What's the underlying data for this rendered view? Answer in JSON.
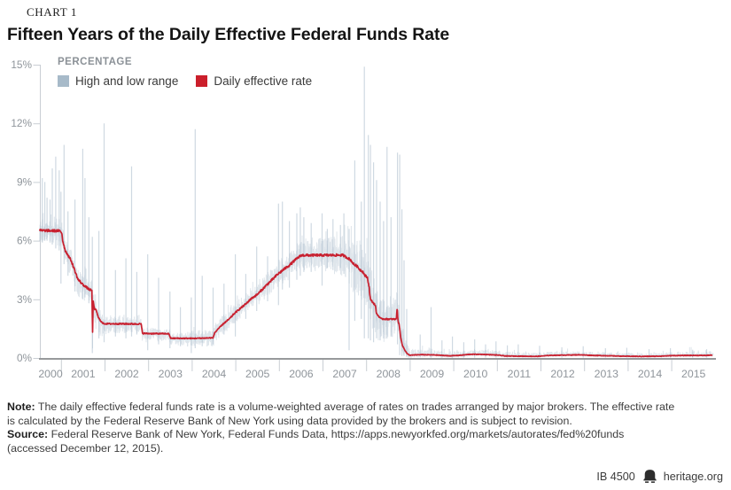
{
  "page": {
    "kicker": "CHART 1",
    "title": "Fifteen Years of the Daily Effective Federal Funds Rate"
  },
  "chart_data": {
    "type": "line",
    "title": "Fifteen Years of the Daily Effective Federal Funds Rate",
    "axis_heading": "PERCENTAGE",
    "legend_items": [
      {
        "label": "High and low range",
        "color": "#a7bac9",
        "kind": "range"
      },
      {
        "label": "Daily effective rate",
        "color": "#cb1f2b",
        "kind": "line"
      }
    ],
    "x_domain": [
      2000.5,
      2015.95
    ],
    "x_tick_labels": [
      "2000",
      "2001",
      "2002",
      "2003",
      "2004",
      "2005",
      "2006",
      "2007",
      "2008",
      "2009",
      "2010",
      "2011",
      "2012",
      "2013",
      "2014",
      "2015"
    ],
    "y_ticks": [
      0,
      3,
      6,
      9,
      12,
      15
    ],
    "y_tick_labels": [
      "0%",
      "3%",
      "6%",
      "9%",
      "12%",
      "15%"
    ],
    "ylim": [
      0,
      15
    ],
    "grid": false,
    "legend_position": "top-left",
    "series": [
      {
        "name": "Daily effective rate",
        "type": "line",
        "color": "#c8202f",
        "points": [
          [
            2000.5,
            6.52
          ],
          [
            2000.96,
            6.5
          ],
          [
            2001.01,
            6.4
          ],
          [
            2001.03,
            5.98
          ],
          [
            2001.09,
            5.49
          ],
          [
            2001.22,
            5.0
          ],
          [
            2001.3,
            4.51
          ],
          [
            2001.38,
            4.02
          ],
          [
            2001.49,
            3.76
          ],
          [
            2001.64,
            3.5
          ],
          [
            2001.7,
            3.45
          ],
          [
            2001.715,
            1.22
          ],
          [
            2001.73,
            2.95
          ],
          [
            2001.76,
            2.48
          ],
          [
            2001.8,
            2.44
          ],
          [
            2001.85,
            2.04
          ],
          [
            2001.87,
            2.0
          ],
          [
            2001.94,
            1.78
          ],
          [
            2002.0,
            1.75
          ],
          [
            2002.83,
            1.74
          ],
          [
            2002.86,
            1.26
          ],
          [
            2003.0,
            1.25
          ],
          [
            2003.47,
            1.24
          ],
          [
            2003.5,
            1.01
          ],
          [
            2004.0,
            1.0
          ],
          [
            2004.48,
            1.03
          ],
          [
            2004.51,
            1.26
          ],
          [
            2004.6,
            1.51
          ],
          [
            2004.62,
            1.53
          ],
          [
            2004.72,
            1.76
          ],
          [
            2004.86,
            2.01
          ],
          [
            2004.96,
            2.26
          ],
          [
            2005.09,
            2.51
          ],
          [
            2005.23,
            2.76
          ],
          [
            2005.34,
            3.01
          ],
          [
            2005.5,
            3.26
          ],
          [
            2005.61,
            3.51
          ],
          [
            2005.72,
            3.76
          ],
          [
            2005.84,
            4.01
          ],
          [
            2005.95,
            4.26
          ],
          [
            2006.09,
            4.51
          ],
          [
            2006.24,
            4.76
          ],
          [
            2006.36,
            5.01
          ],
          [
            2006.5,
            5.25
          ],
          [
            2007.45,
            5.26
          ],
          [
            2007.58,
            5.1
          ],
          [
            2007.63,
            5.02
          ],
          [
            2007.72,
            4.76
          ],
          [
            2007.77,
            4.72
          ],
          [
            2007.84,
            4.53
          ],
          [
            2007.92,
            4.4
          ],
          [
            2007.95,
            4.25
          ],
          [
            2008.02,
            4.1
          ],
          [
            2008.06,
            3.6
          ],
          [
            2008.09,
            2.98
          ],
          [
            2008.2,
            2.7
          ],
          [
            2008.23,
            2.26
          ],
          [
            2008.33,
            2.0
          ],
          [
            2008.68,
            1.98
          ],
          [
            2008.705,
            2.6
          ],
          [
            2008.72,
            1.9
          ],
          [
            2008.75,
            1.68
          ],
          [
            2008.78,
            1.1
          ],
          [
            2008.82,
            0.65
          ],
          [
            2008.88,
            0.4
          ],
          [
            2008.93,
            0.22
          ],
          [
            2008.99,
            0.14
          ],
          [
            2009.25,
            0.17
          ],
          [
            2009.6,
            0.15
          ],
          [
            2009.9,
            0.11
          ],
          [
            2010.1,
            0.13
          ],
          [
            2010.4,
            0.19
          ],
          [
            2010.7,
            0.18
          ],
          [
            2011.0,
            0.15
          ],
          [
            2011.2,
            0.1
          ],
          [
            2011.6,
            0.09
          ],
          [
            2011.9,
            0.08
          ],
          [
            2012.2,
            0.13
          ],
          [
            2012.6,
            0.15
          ],
          [
            2012.9,
            0.16
          ],
          [
            2013.2,
            0.13
          ],
          [
            2013.6,
            0.11
          ],
          [
            2013.9,
            0.09
          ],
          [
            2014.3,
            0.08
          ],
          [
            2014.7,
            0.09
          ],
          [
            2015.0,
            0.12
          ],
          [
            2015.4,
            0.13
          ],
          [
            2015.8,
            0.13
          ],
          [
            2015.94,
            0.15
          ]
        ]
      },
      {
        "name": "High and low range",
        "type": "range",
        "color": "#a7bac9",
        "envelope": [
          [
            2000.5,
            0.45,
            0.55
          ],
          [
            2001.0,
            0.55,
            0.8
          ],
          [
            2001.6,
            0.55,
            0.9
          ],
          [
            2001.8,
            0.6,
            1.0
          ],
          [
            2002.0,
            0.4,
            0.55
          ],
          [
            2002.5,
            0.35,
            0.5
          ],
          [
            2003.0,
            0.3,
            0.45
          ],
          [
            2003.6,
            0.28,
            0.4
          ],
          [
            2004.0,
            0.4,
            0.45
          ],
          [
            2004.6,
            0.45,
            0.5
          ],
          [
            2005.0,
            0.5,
            0.55
          ],
          [
            2005.6,
            0.55,
            0.6
          ],
          [
            2006.0,
            0.7,
            0.7
          ],
          [
            2006.5,
            0.85,
            0.8
          ],
          [
            2007.0,
            0.9,
            0.85
          ],
          [
            2007.55,
            1.0,
            1.1
          ],
          [
            2007.7,
            1.2,
            1.6
          ],
          [
            2008.0,
            1.5,
            1.5
          ],
          [
            2008.4,
            1.3,
            1.3
          ],
          [
            2008.75,
            1.0,
            0.6
          ],
          [
            2008.95,
            0.45,
            0.2
          ],
          [
            2009.1,
            0.28,
            0.13
          ],
          [
            2010.0,
            0.25,
            0.12
          ],
          [
            2011.0,
            0.22,
            0.1
          ],
          [
            2012.0,
            0.2,
            0.09
          ],
          [
            2013.0,
            0.18,
            0.08
          ],
          [
            2014.0,
            0.16,
            0.07
          ],
          [
            2015.0,
            0.2,
            0.08
          ],
          [
            2015.95,
            0.28,
            0.1
          ]
        ],
        "spikes": [
          [
            2000.56,
            9.2,
            5.9
          ],
          [
            2000.62,
            9.0,
            6.0
          ],
          [
            2000.67,
            8.2,
            6.0
          ],
          [
            2000.74,
            8.1,
            5.9
          ],
          [
            2000.79,
            9.7,
            5.8
          ],
          [
            2000.87,
            10.3,
            5.6
          ],
          [
            2000.95,
            9.6,
            5.5
          ],
          [
            2000.99,
            8.5,
            3.8
          ],
          [
            2001.06,
            10.9,
            4.8
          ],
          [
            2001.15,
            7.5,
            4.2
          ],
          [
            2001.31,
            8.1,
            3.4
          ],
          [
            2001.49,
            10.7,
            3.0
          ],
          [
            2001.54,
            9.2,
            3.1
          ],
          [
            2001.63,
            7.2,
            2.8
          ],
          [
            2001.71,
            6.2,
            0.25
          ],
          [
            2001.86,
            6.5,
            1.0
          ],
          [
            2001.98,
            12.0,
            0.8
          ],
          [
            2002.24,
            4.5,
            1.1
          ],
          [
            2002.48,
            5.1,
            1.0
          ],
          [
            2002.61,
            9.8,
            1.1
          ],
          [
            2002.73,
            4.4,
            1.2
          ],
          [
            2002.98,
            5.3,
            0.4
          ],
          [
            2003.23,
            4.1,
            0.7
          ],
          [
            2003.49,
            3.4,
            0.5
          ],
          [
            2003.73,
            2.6,
            0.6
          ],
          [
            2003.98,
            3.1,
            0.25
          ],
          [
            2004.07,
            11.7,
            0.5
          ],
          [
            2004.23,
            4.2,
            0.6
          ],
          [
            2004.48,
            3.6,
            0.7
          ],
          [
            2004.73,
            3.8,
            1.2
          ],
          [
            2004.99,
            5.3,
            1.1
          ],
          [
            2005.23,
            4.3,
            2.0
          ],
          [
            2005.48,
            5.7,
            2.4
          ],
          [
            2005.73,
            5.2,
            2.9
          ],
          [
            2005.98,
            7.9,
            2.7
          ],
          [
            2006.07,
            8.0,
            3.5
          ],
          [
            2006.23,
            7.0,
            3.6
          ],
          [
            2006.4,
            7.4,
            4.0
          ],
          [
            2006.48,
            7.7,
            4.2
          ],
          [
            2006.56,
            7.2,
            4.4
          ],
          [
            2006.73,
            6.9,
            4.4
          ],
          [
            2006.98,
            7.4,
            3.7
          ],
          [
            2007.1,
            6.6,
            4.6
          ],
          [
            2007.23,
            7.1,
            4.5
          ],
          [
            2007.4,
            6.8,
            4.6
          ],
          [
            2007.48,
            7.4,
            4.3
          ],
          [
            2007.6,
            6.6,
            0.4
          ],
          [
            2007.73,
            10.1,
            1.9
          ],
          [
            2007.88,
            8.0,
            2.0
          ],
          [
            2007.95,
            14.9,
            1.0
          ],
          [
            2008.04,
            11.4,
            1.0
          ],
          [
            2008.09,
            10.9,
            0.9
          ],
          [
            2008.16,
            10.0,
            0.8
          ],
          [
            2008.23,
            9.1,
            1.0
          ],
          [
            2008.31,
            8.0,
            0.9
          ],
          [
            2008.39,
            7.0,
            1.0
          ],
          [
            2008.47,
            10.8,
            1.0
          ],
          [
            2008.56,
            7.2,
            1.1
          ],
          [
            2008.71,
            10.5,
            0.7
          ],
          [
            2008.76,
            10.4,
            0.15
          ],
          [
            2008.81,
            7.6,
            0.1
          ],
          [
            2008.86,
            5.0,
            0.1
          ],
          [
            2008.92,
            2.5,
            0.05
          ],
          [
            2009.23,
            1.2,
            0.03
          ],
          [
            2009.48,
            2.6,
            0.02
          ],
          [
            2009.73,
            0.9,
            0.02
          ],
          [
            2009.97,
            1.1,
            0.02
          ],
          [
            2010.23,
            0.8,
            0.02
          ],
          [
            2010.48,
            0.95,
            0.02
          ],
          [
            2010.73,
            0.7,
            0.02
          ],
          [
            2010.97,
            0.85,
            0.02
          ],
          [
            2011.23,
            0.65,
            0.01
          ],
          [
            2011.48,
            0.7,
            0.01
          ],
          [
            2011.97,
            0.62,
            0.01
          ],
          [
            2012.48,
            0.55,
            0.02
          ],
          [
            2012.97,
            0.6,
            0.02
          ],
          [
            2013.48,
            0.5,
            0.02
          ],
          [
            2013.97,
            0.52,
            0.02
          ],
          [
            2014.48,
            0.45,
            0.02
          ],
          [
            2014.97,
            0.5,
            0.02
          ],
          [
            2015.48,
            0.42,
            0.02
          ],
          [
            2015.8,
            0.45,
            0.02
          ]
        ]
      }
    ]
  },
  "footnote": {
    "note_bold": "Note:",
    "note_line1": "The daily effective federal funds rate is a volume-weighted average of rates on trades arranged by major brokers. The effective rate",
    "note_line2": "is calculated by the Federal Reserve Bank of New York using data provided by the brokers and is subject to revision.",
    "source_bold": "Source:",
    "source_line1": "Federal Reserve Bank of New York, Federal Funds Data, https://apps.newyorkfed.org/markets/autorates/fed%20funds",
    "source_line2": "(accessed December 12, 2015)."
  },
  "footer": {
    "id_label": "IB 4500",
    "site": "heritage.org",
    "logo": "liberty-bell-icon"
  },
  "colors": {
    "rate_red": "#c8202f",
    "range_blue": "#a7bac9",
    "axis_dark": "#97999b",
    "axis_light": "#c9ced4",
    "tick_text": "#8f959b"
  }
}
